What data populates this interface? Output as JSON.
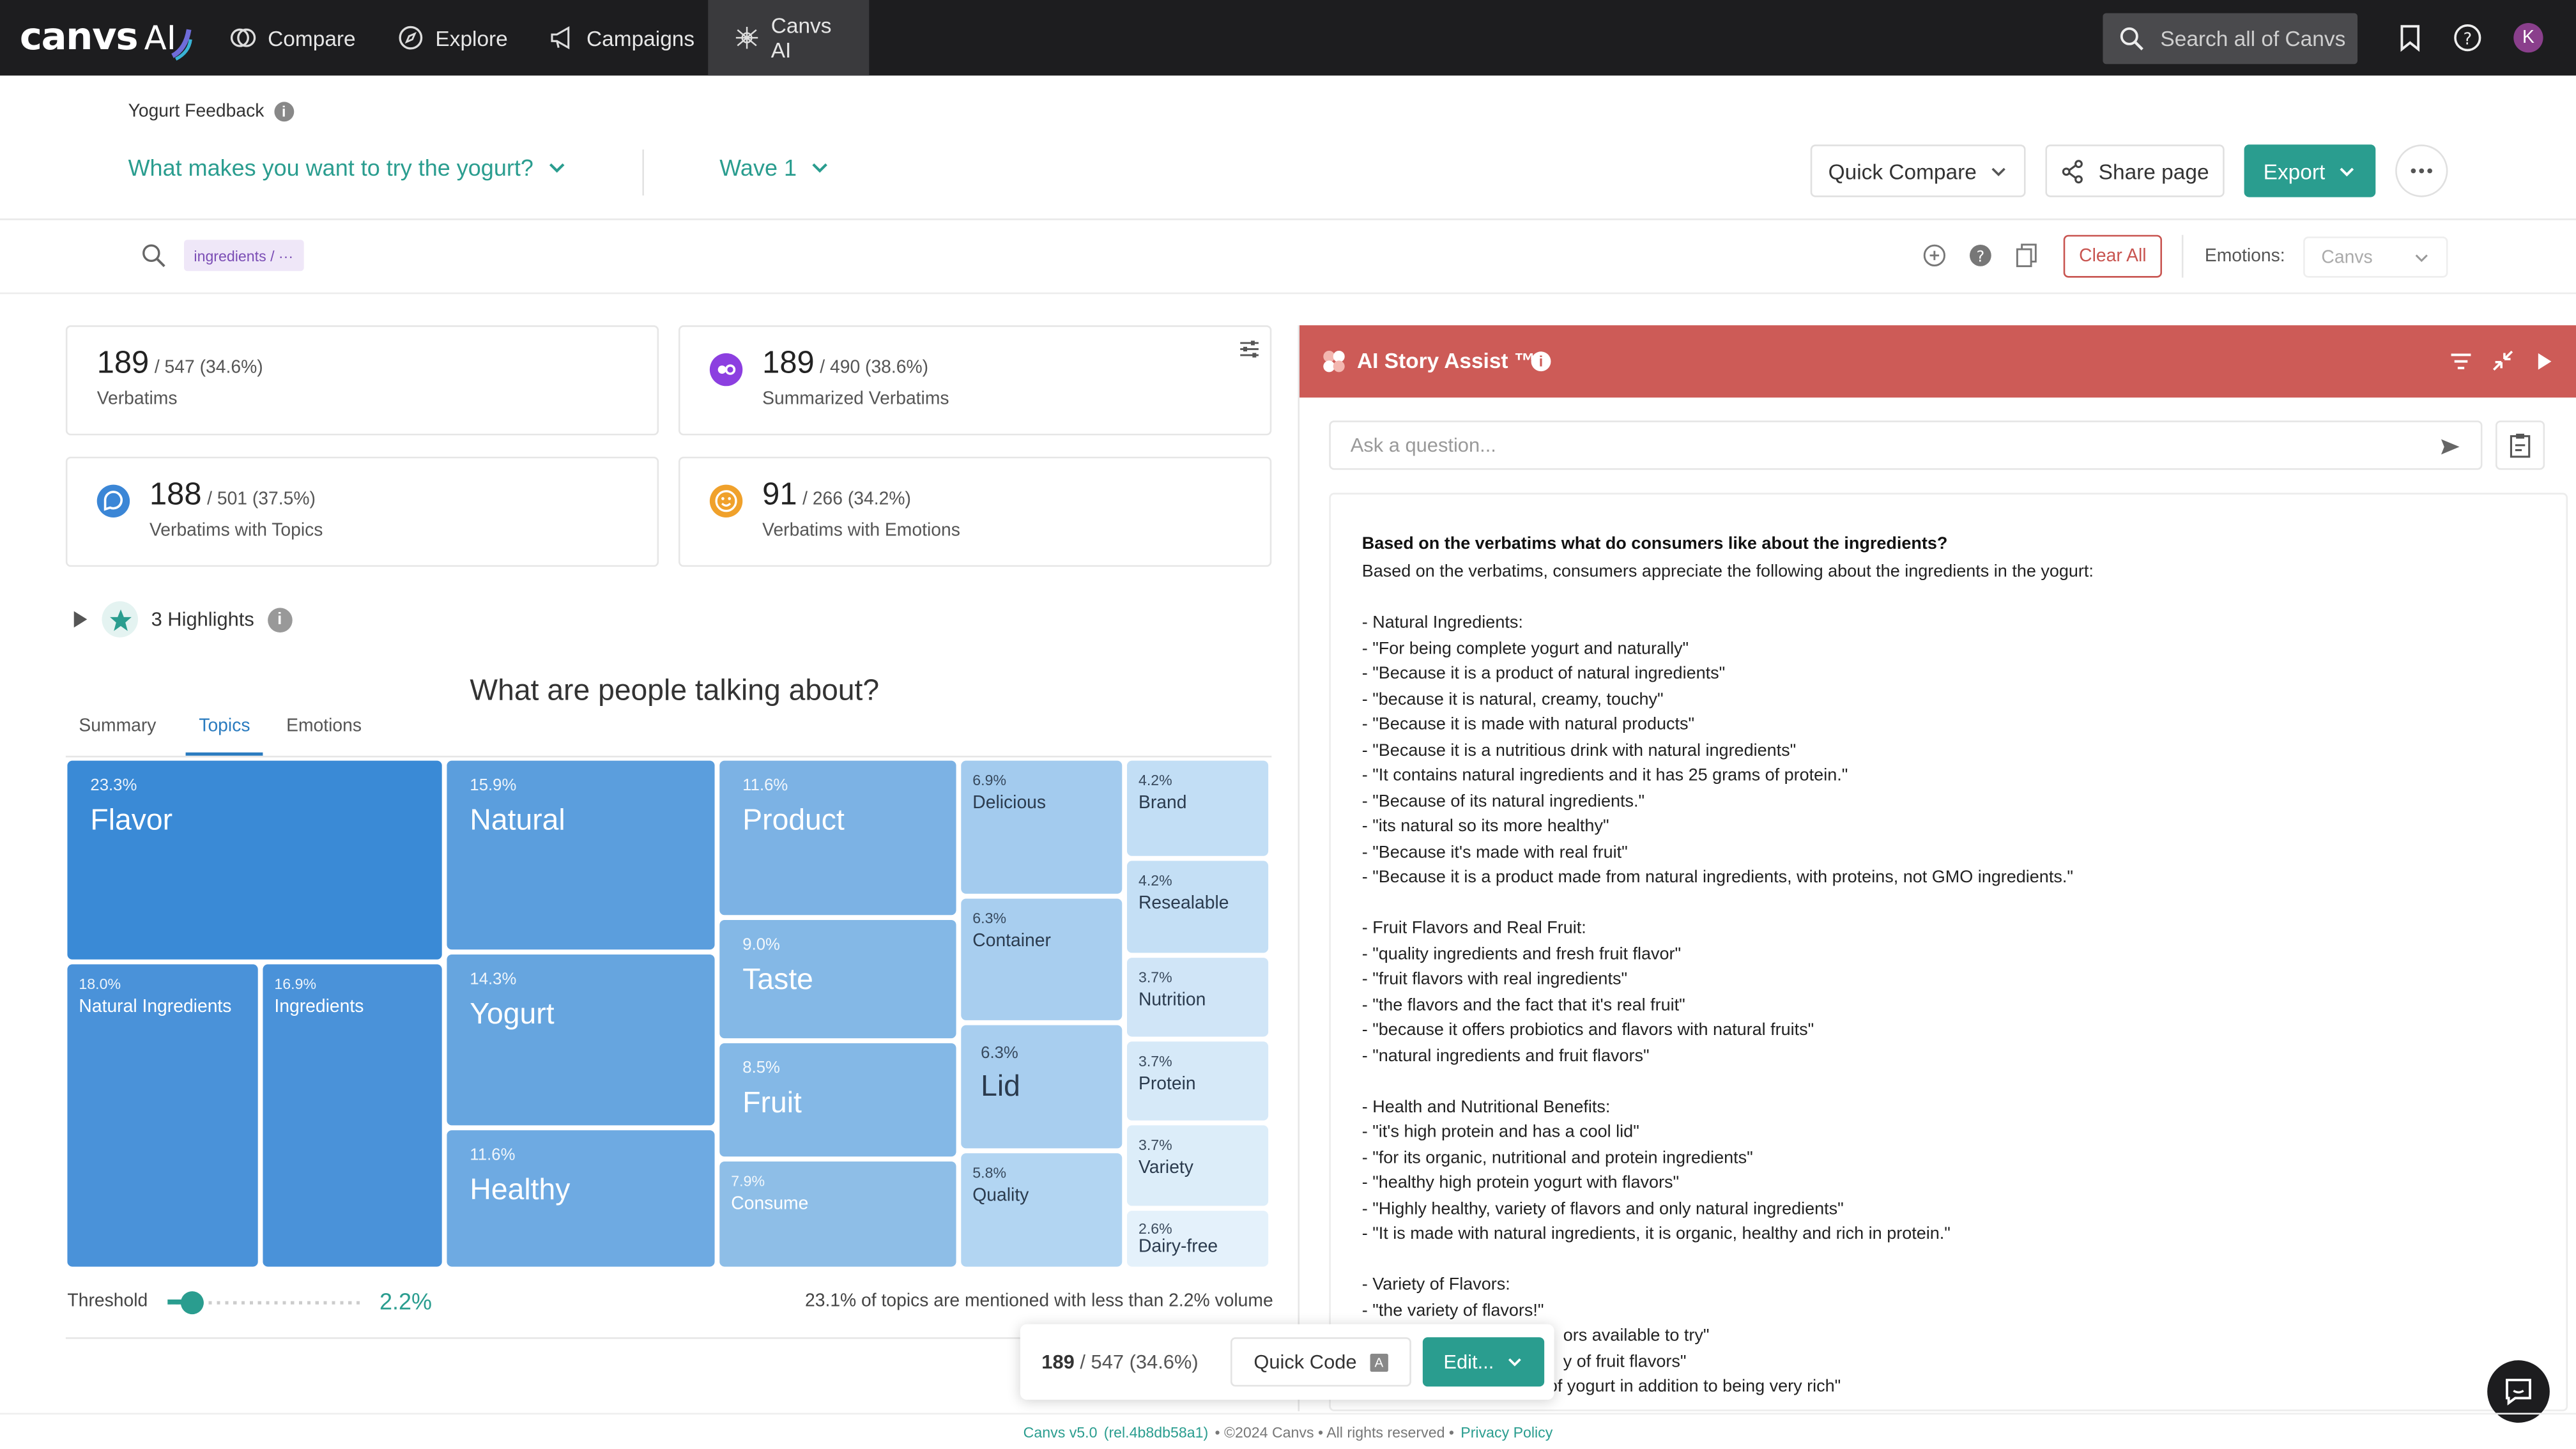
{
  "app": {
    "logo_text": "canvs",
    "logo_ai": "AI"
  },
  "nav": {
    "items": [
      {
        "label": "Compare"
      },
      {
        "label": "Explore"
      },
      {
        "label": "Campaigns"
      },
      {
        "label": "Canvs AI"
      }
    ],
    "search_placeholder": "Search all of Canvs",
    "avatar_initial": "K"
  },
  "header": {
    "project_title": "Yogurt Feedback",
    "question": "What makes you want to try the yogurt?",
    "wave": "Wave 1",
    "quick_compare": "Quick Compare",
    "share": "Share page",
    "export": "Export"
  },
  "filters": {
    "chip": "ingredients / ···",
    "clear_all": "Clear All",
    "emotions_label": "Emotions:",
    "emotions_value": "Canvs"
  },
  "stats": [
    {
      "num": "189",
      "sub": "/ 547 (34.6%)",
      "label": "Verbatims"
    },
    {
      "num": "189",
      "sub": "/ 490 (38.6%)",
      "label": "Summarized Verbatims"
    },
    {
      "num": "188",
      "sub": "/ 501 (37.5%)",
      "label": "Verbatims with Topics"
    },
    {
      "num": "91",
      "sub": "/ 266 (34.2%)",
      "label": "Verbatims with Emotions"
    }
  ],
  "highlights_label": "3 Highlights",
  "chart": {
    "title": "What are people talking about?",
    "tabs": [
      "Summary",
      "Topics",
      "Emotions"
    ],
    "active_tab": "Topics"
  },
  "chart_data": {
    "type": "treemap",
    "title": "What are people talking about?",
    "items": [
      {
        "label": "Flavor",
        "pct": "23.3%",
        "value": 23.3
      },
      {
        "label": "Natural Ingredients",
        "pct": "18.0%",
        "value": 18.0
      },
      {
        "label": "Ingredients",
        "pct": "16.9%",
        "value": 16.9
      },
      {
        "label": "Natural",
        "pct": "15.9%",
        "value": 15.9
      },
      {
        "label": "Yogurt",
        "pct": "14.3%",
        "value": 14.3
      },
      {
        "label": "Healthy",
        "pct": "11.6%",
        "value": 11.6
      },
      {
        "label": "Product",
        "pct": "11.6%",
        "value": 11.6
      },
      {
        "label": "Taste",
        "pct": "9.0%",
        "value": 9.0
      },
      {
        "label": "Fruit",
        "pct": "8.5%",
        "value": 8.5
      },
      {
        "label": "Consume",
        "pct": "7.9%",
        "value": 7.9
      },
      {
        "label": "Delicious",
        "pct": "6.9%",
        "value": 6.9
      },
      {
        "label": "Container",
        "pct": "6.3%",
        "value": 6.3
      },
      {
        "label": "Lid",
        "pct": "6.3%",
        "value": 6.3
      },
      {
        "label": "Quality",
        "pct": "5.8%",
        "value": 5.8
      },
      {
        "label": "Brand",
        "pct": "4.2%",
        "value": 4.2
      },
      {
        "label": "Resealable",
        "pct": "4.2%",
        "value": 4.2
      },
      {
        "label": "Nutrition",
        "pct": "3.7%",
        "value": 3.7
      },
      {
        "label": "Protein",
        "pct": "3.7%",
        "value": 3.7
      },
      {
        "label": "Variety",
        "pct": "3.7%",
        "value": 3.7
      },
      {
        "label": "Dairy-free",
        "pct": "2.6%",
        "value": 2.6
      }
    ]
  },
  "threshold": {
    "label": "Threshold",
    "value": "2.2%",
    "value_num": 2.2,
    "note": "23.1% of topics are mentioned with less than 2.2% volume"
  },
  "ai": {
    "title": "AI Story Assist ™",
    "ask_placeholder": "Ask a question...",
    "question": "Based on the verbatims what do consumers like about the ingredients?",
    "answer_lines": [
      "Based on the verbatims, consumers appreciate the following about the ingredients in the yogurt:",
      "",
      "- Natural Ingredients:",
      "- \"For being complete yogurt and naturally\"",
      "- \"Because it is a product of natural ingredients\"",
      "- \"because it is natural, creamy, touchy\"",
      "- \"Because it is made with natural products\"",
      "- \"Because it is a nutritious drink with natural ingredients\"",
      "- \"It contains natural ingredients and it has 25 grams of protein.\"",
      "- \"Because of its natural ingredients.\"",
      "- \"its natural so its more healthy\"",
      "- \"Because it's made with real fruit\"",
      "- \"Because it is a product made from natural ingredients, with proteins, not GMO ingredients.\"",
      "",
      "- Fruit Flavors and Real Fruit:",
      "- \"quality ingredients and fresh fruit flavor\"",
      "- \"fruit flavors with real ingredients\"",
      "- \"the flavors and the fact that it's real fruit\"",
      "- \"because it offers probiotics and flavors with natural fruits\"",
      "- \"natural ingredients and fruit flavors\"",
      "",
      "- Health and Nutritional Benefits:",
      "- \"it's high protein and has a cool lid\"",
      "- \"for its organic, nutritional and protein ingredients\"",
      "- \"healthy high protein yogurt with flavors\"",
      "- \"Highly healthy, variety of flavors and only natural ingredients\"",
      "- \"It is made with natural ingredients, it is organic, healthy and rich in protein.\"",
      "",
      "- Variety of Flavors:",
      "- \"the variety of flavors!\"",
      "                                          ors available to try\"",
      "                                          y of fruit flavors\"",
      "  \"for the flavors it offers of yogurt in addition to being very rich\""
    ]
  },
  "floatbar": {
    "count": "189",
    "count_sub": "/ 547 (34.6%)",
    "quick_code": "Quick Code",
    "quick_code_key": "A",
    "edit": "Edit..."
  },
  "footer": {
    "version": "Canvs v5.0",
    "rel": "(rel.4b8db58a1)",
    "copyright": "• ©2024 Canvs • All rights reserved •",
    "privacy": "Privacy Policy"
  },
  "colors": {
    "accent": "#2a9d8f",
    "ai_header": "#cd5b57",
    "nav_bg": "#1d1d1f"
  }
}
